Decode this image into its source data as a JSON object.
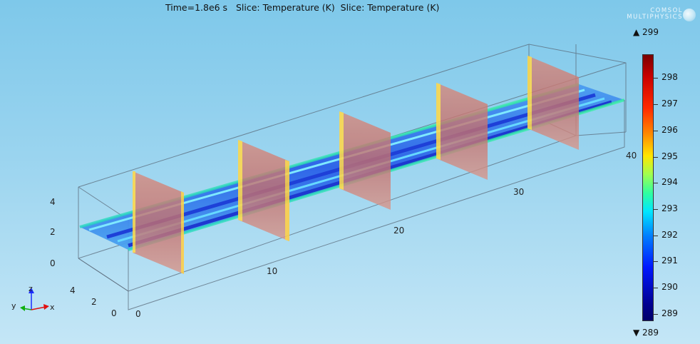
{
  "plot_title": "Time=1.8e6 s   Slice: Temperature (K)  Slice: Temperature (K)",
  "logo_text_line1": "COMSOL",
  "logo_text_line2": "MULTIPHYSICS",
  "colorbar": {
    "max_label": "▲ 299",
    "min_label": "▼ 289",
    "ticks": [
      "298",
      "297",
      "296",
      "295",
      "294",
      "293",
      "292",
      "291",
      "290",
      "289"
    ]
  },
  "axes": {
    "x_ticks": [
      "0",
      "10",
      "20",
      "30",
      "40"
    ],
    "y_ticks": [
      "0",
      "2",
      "4"
    ],
    "z_ticks": [
      "0",
      "2",
      "4"
    ]
  },
  "triad": {
    "x": "x",
    "y": "y",
    "z": "z"
  }
}
